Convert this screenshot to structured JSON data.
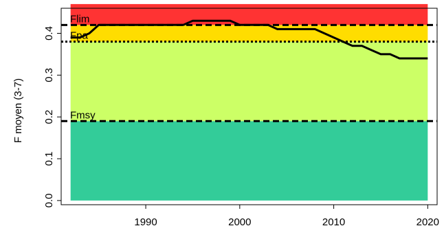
{
  "chart_data": {
    "type": "line",
    "xlabel": "",
    "ylabel": "F moyen (3-7)",
    "xlim": [
      1981,
      2021
    ],
    "ylim": [
      -0.01,
      0.46
    ],
    "x_ticks": [
      1990,
      2000,
      2010,
      2020
    ],
    "x_tick_labels": [
      "1990",
      "2000",
      "2010",
      "2020"
    ],
    "y_ticks": [
      0.0,
      0.1,
      0.2,
      0.3,
      0.4
    ],
    "y_tick_labels": [
      "0.0",
      "0.1",
      "0.2",
      "0.3",
      "0.4"
    ],
    "grid": false,
    "zones": [
      {
        "name": "green",
        "from": 0.0,
        "to": 0.19,
        "color": "#33CC99"
      },
      {
        "name": "lightgreen",
        "from": 0.19,
        "to": 0.38,
        "color": "#CCFF66"
      },
      {
        "name": "yellow",
        "from": 0.38,
        "to": 0.42,
        "color": "#FFDD00"
      },
      {
        "name": "red",
        "from": 0.42,
        "to": 0.47,
        "color": "#FF3333"
      }
    ],
    "zone_x_range": [
      1982,
      2020
    ],
    "reference_lines": [
      {
        "label": "Flim",
        "value": 0.42,
        "style": "dashed"
      },
      {
        "label": "Fpa",
        "value": 0.38,
        "style": "dotted"
      },
      {
        "label": "Fmsy",
        "value": 0.19,
        "style": "dashed"
      }
    ],
    "series": [
      {
        "x": [
          1982,
          1983,
          1984,
          1985,
          1986,
          1987,
          1988,
          1989,
          1990,
          1991,
          1992,
          1993,
          1994,
          1995,
          1996,
          1997,
          1998,
          1999,
          2000,
          2001,
          2002,
          2003,
          2004,
          2005,
          2006,
          2007,
          2008,
          2009,
          2010,
          2011,
          2012,
          2013,
          2014,
          2015,
          2016,
          2017,
          2018,
          2019,
          2020
        ],
        "values": [
          0.39,
          0.39,
          0.4,
          0.42,
          0.42,
          0.42,
          0.42,
          0.42,
          0.42,
          0.42,
          0.42,
          0.42,
          0.42,
          0.43,
          0.43,
          0.43,
          0.43,
          0.43,
          0.42,
          0.42,
          0.42,
          0.42,
          0.41,
          0.41,
          0.41,
          0.41,
          0.41,
          0.4,
          0.39,
          0.38,
          0.37,
          0.37,
          0.36,
          0.35,
          0.35,
          0.34,
          0.34,
          0.34,
          0.34
        ],
        "color": "#000000"
      }
    ]
  }
}
